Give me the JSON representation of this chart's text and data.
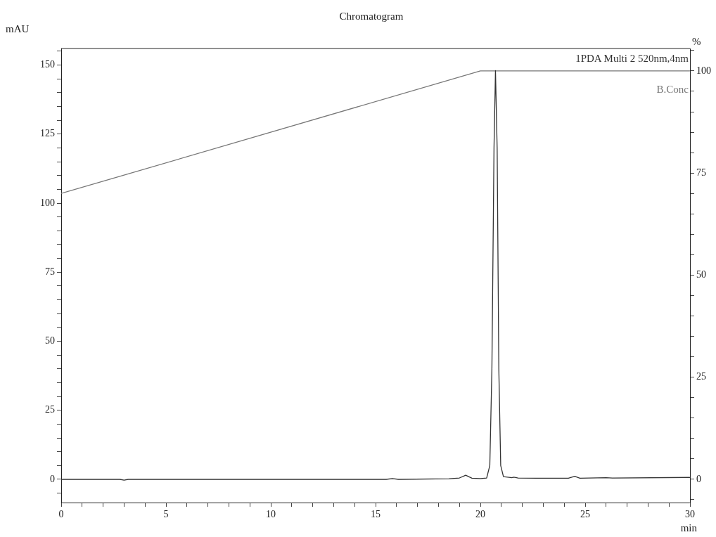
{
  "chart_data": {
    "type": "line",
    "title": "Chromatogram",
    "xlabel": "min",
    "ylabel": "mAU",
    "y2label": "%",
    "xlim": [
      0,
      30
    ],
    "ylim": [
      -8.4,
      156
    ],
    "y2lim": [
      -5.7,
      105.5
    ],
    "xticks": [
      0,
      {
        "value": 1,
        "label": null
      },
      {
        "value": 2,
        "label": null
      },
      {
        "value": 3,
        "label": null
      },
      {
        "value": 4,
        "label": null
      },
      5,
      {
        "value": 6,
        "label": null
      },
      {
        "value": 7,
        "label": null
      },
      {
        "value": 8,
        "label": null
      },
      {
        "value": 9,
        "label": null
      },
      10,
      {
        "value": 11,
        "label": null
      },
      {
        "value": 12,
        "label": null
      },
      {
        "value": 13,
        "label": null
      },
      {
        "value": 14,
        "label": null
      },
      15,
      {
        "value": 16,
        "label": null
      },
      {
        "value": 17,
        "label": null
      },
      {
        "value": 18,
        "label": null
      },
      {
        "value": 19,
        "label": null
      },
      20,
      {
        "value": 21,
        "label": null
      },
      {
        "value": 22,
        "label": null
      },
      {
        "value": 23,
        "label": null
      },
      {
        "value": 24,
        "label": null
      },
      25,
      {
        "value": 26,
        "label": null
      },
      {
        "value": 27,
        "label": null
      },
      {
        "value": 28,
        "label": null
      },
      {
        "value": 29,
        "label": null
      },
      30
    ],
    "yticks": [
      {
        "value": -5,
        "label": null
      },
      0,
      {
        "value": 5,
        "label": null
      },
      {
        "value": 10,
        "label": null
      },
      {
        "value": 15,
        "label": null
      },
      {
        "value": 20,
        "label": null
      },
      25,
      {
        "value": 30,
        "label": null
      },
      {
        "value": 35,
        "label": null
      },
      {
        "value": 40,
        "label": null
      },
      {
        "value": 45,
        "label": null
      },
      50,
      {
        "value": 55,
        "label": null
      },
      {
        "value": 60,
        "label": null
      },
      {
        "value": 65,
        "label": null
      },
      {
        "value": 70,
        "label": null
      },
      75,
      {
        "value": 80,
        "label": null
      },
      {
        "value": 85,
        "label": null
      },
      {
        "value": 90,
        "label": null
      },
      {
        "value": 95,
        "label": null
      },
      100,
      {
        "value": 105,
        "label": null
      },
      {
        "value": 110,
        "label": null
      },
      {
        "value": 115,
        "label": null
      },
      {
        "value": 120,
        "label": null
      },
      125,
      {
        "value": 130,
        "label": null
      },
      {
        "value": 135,
        "label": null
      },
      {
        "value": 140,
        "label": null
      },
      {
        "value": 145,
        "label": null
      },
      150,
      {
        "value": 155,
        "label": null
      }
    ],
    "y2ticks": [
      {
        "value": -5,
        "label": null
      },
      0,
      {
        "value": 5,
        "label": null
      },
      {
        "value": 10,
        "label": null
      },
      {
        "value": 15,
        "label": null
      },
      {
        "value": 20,
        "label": null
      },
      25,
      {
        "value": 30,
        "label": null
      },
      {
        "value": 35,
        "label": null
      },
      {
        "value": 40,
        "label": null
      },
      {
        "value": 45,
        "label": null
      },
      50,
      {
        "value": 55,
        "label": null
      },
      {
        "value": 60,
        "label": null
      },
      {
        "value": 65,
        "label": null
      },
      {
        "value": 70,
        "label": null
      },
      75,
      {
        "value": 80,
        "label": null
      },
      {
        "value": 85,
        "label": null
      },
      {
        "value": 90,
        "label": null
      },
      {
        "value": 95,
        "label": null
      },
      100,
      {
        "value": 105,
        "label": null
      }
    ],
    "series": [
      {
        "name": "1PDA Multi 2 520nm,4nm",
        "color": "#333333",
        "x": [
          0,
          2.8,
          3.0,
          3.2,
          15.5,
          15.8,
          16.1,
          18.5,
          19.0,
          19.3,
          19.6,
          20.0,
          20.3,
          20.45,
          20.55,
          20.65,
          20.72,
          20.8,
          20.88,
          20.97,
          21.1,
          21.5,
          21.6,
          21.8,
          23,
          24.2,
          24.5,
          24.75,
          26,
          26.3,
          30
        ],
        "values": [
          0,
          0,
          -0.3,
          0,
          0,
          0.3,
          0,
          0.2,
          0.5,
          1.5,
          0.4,
          0.3,
          0.5,
          5,
          40,
          120,
          148,
          120,
          40,
          5,
          1,
          0.6,
          0.8,
          0.5,
          0.4,
          0.4,
          1.1,
          0.4,
          0.6,
          0.5,
          0.7
        ]
      },
      {
        "name": "B.Conc",
        "color": "#777777",
        "axis": "y2",
        "x": [
          0,
          20,
          30
        ],
        "values": [
          70,
          100,
          100
        ]
      }
    ],
    "legend": false
  }
}
